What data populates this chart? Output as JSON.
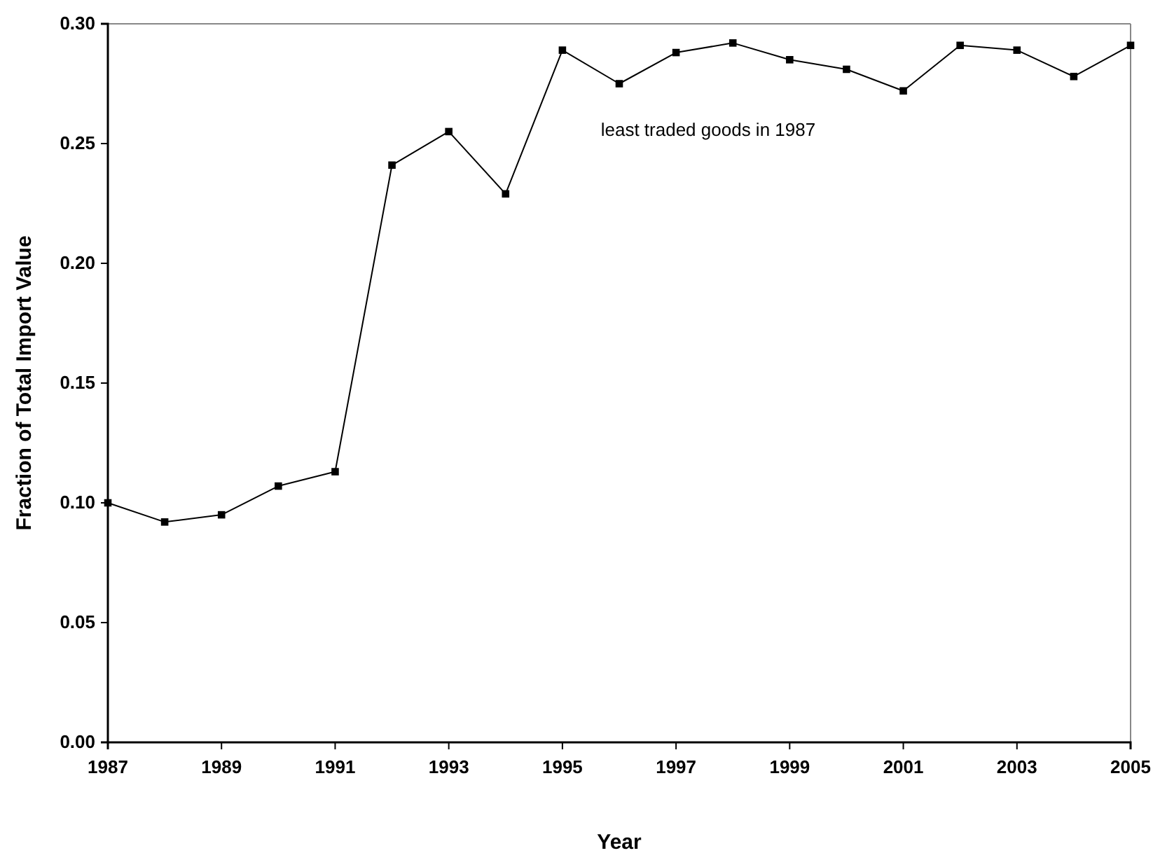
{
  "chart_data": {
    "type": "line",
    "xlabel": "Year",
    "ylabel": "Fraction of Total Import Value",
    "annotations": [
      "least traded goods in 1987"
    ],
    "x": [
      1987,
      1988,
      1989,
      1990,
      1991,
      1992,
      1993,
      1994,
      1995,
      1996,
      1997,
      1998,
      1999,
      2000,
      2001,
      2002,
      2003,
      2004,
      2005
    ],
    "series": [
      {
        "color": "#000000",
        "values": [
          0.1,
          0.092,
          0.095,
          0.107,
          0.113,
          0.241,
          0.255,
          0.229,
          0.289,
          0.275,
          0.288,
          0.292,
          0.285,
          0.281,
          0.272,
          0.291,
          0.289,
          0.278,
          0.291
        ]
      }
    ],
    "xlim": [
      1987,
      2005
    ],
    "xticks": [
      1987,
      1989,
      1991,
      1993,
      1995,
      1997,
      1999,
      2001,
      2003,
      2005
    ],
    "ylim": [
      0,
      0.3
    ],
    "yticks": [
      {
        "value": 0,
        "label": "0.00"
      },
      {
        "value": 0.05,
        "label": "0.05"
      },
      {
        "value": 0.1,
        "label": "0.10"
      },
      {
        "value": 0.15,
        "label": "0.15"
      },
      {
        "value": 0.2,
        "label": "0.20"
      },
      {
        "value": 0.25,
        "label": "0.25"
      },
      {
        "value": 0.3,
        "label": "0.30"
      }
    ],
    "grid": false,
    "marker": "square",
    "line_style": "solid"
  }
}
